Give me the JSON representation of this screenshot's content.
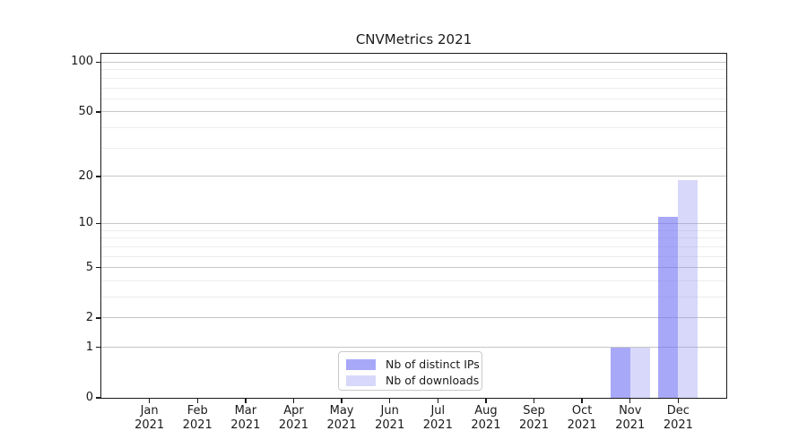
{
  "colors": {
    "background": "#ffffff",
    "axis": "#1a1a1a",
    "text": "#1a1a1a",
    "grid_major": "#c6c6c6",
    "grid_minor": "#ededed",
    "legend_border": "#c9c9c9",
    "series_distinct_ips_rendered": "#a8a8f9",
    "series_downloads_rendered": "#d8d8fa"
  },
  "chart_data": {
    "type": "bar",
    "title": "CNVMetrics 2021",
    "x_categories": [
      "Jan 2021",
      "Feb 2021",
      "Mar 2021",
      "Apr 2021",
      "May 2021",
      "Jun 2021",
      "Jul 2021",
      "Aug 2021",
      "Sep 2021",
      "Oct 2021",
      "Nov 2021",
      "Dec 2021"
    ],
    "x_tick_months": [
      "Jan",
      "Feb",
      "Mar",
      "Apr",
      "May",
      "Jun",
      "Jul",
      "Aug",
      "Sep",
      "Oct",
      "Nov",
      "Dec"
    ],
    "x_tick_year": "2021",
    "series": [
      {
        "name": "Nb of distinct IPs",
        "color": "#6e6ef5",
        "alpha": 0.6,
        "values": [
          0,
          0,
          0,
          0,
          0,
          0,
          0,
          0,
          0,
          0,
          1,
          11
        ]
      },
      {
        "name": "Nb of downloads",
        "color": "#9090f1",
        "alpha": 0.35,
        "values": [
          0,
          0,
          0,
          0,
          0,
          0,
          0,
          0,
          0,
          0,
          1,
          19
        ]
      }
    ],
    "y_scale": "log1p",
    "y_major_ticks": [
      0,
      1,
      2,
      5,
      10,
      20,
      50,
      100
    ],
    "y_minor_ticks": [
      3,
      4,
      6,
      7,
      8,
      9,
      30,
      40,
      60,
      70,
      80,
      90
    ],
    "ylim": [
      0,
      112.5
    ],
    "xlabel": "",
    "ylabel": "",
    "grid": "horizontal",
    "legend_position": "lower center"
  }
}
